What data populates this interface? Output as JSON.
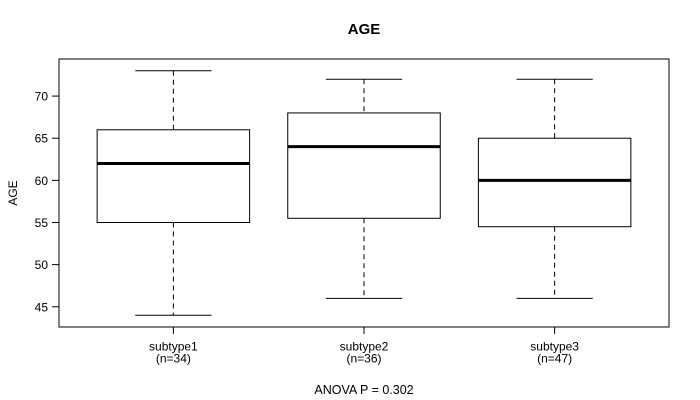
{
  "chart_data": {
    "type": "boxplot",
    "title": "AGE",
    "ylabel": "AGE",
    "xlabel": "",
    "annotation": "ANOVA P = 0.302",
    "ylim": [
      42.6,
      74.4
    ],
    "yticks": [
      45,
      50,
      55,
      60,
      65,
      70
    ],
    "grid": false,
    "legend": "none",
    "groups": [
      {
        "label": "subtype1",
        "sublabel": "(n=34)",
        "n": 34,
        "min": 44,
        "q1": 55,
        "median": 62,
        "q3": 66,
        "max": 73
      },
      {
        "label": "subtype2",
        "sublabel": "(n=36)",
        "n": 36,
        "min": 46,
        "q1": 55.5,
        "median": 64,
        "q3": 68,
        "max": 72
      },
      {
        "label": "subtype3",
        "sublabel": "(n=47)",
        "n": 47,
        "min": 46,
        "q1": 54.5,
        "median": 60,
        "q3": 65,
        "max": 72
      }
    ],
    "colors": {
      "line": "#000000",
      "background": "#ffffff"
    }
  }
}
